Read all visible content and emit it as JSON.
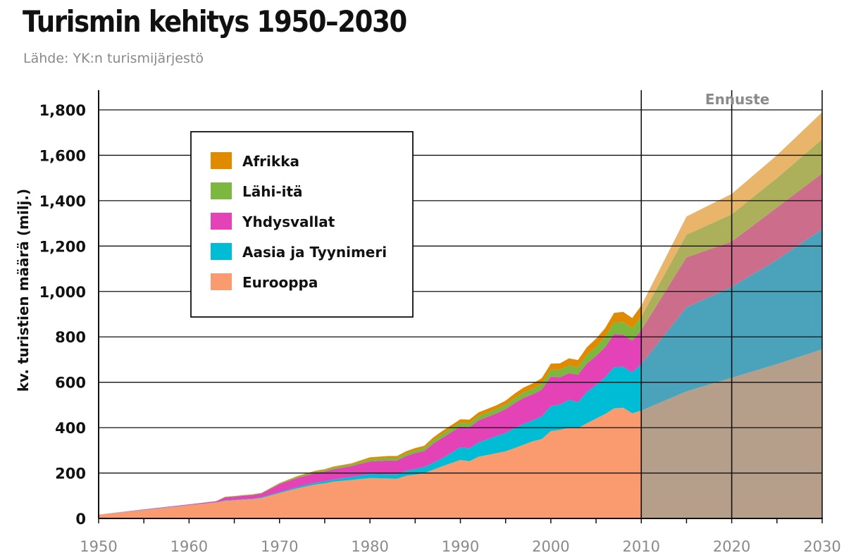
{
  "header": {
    "title": "Turismin kehitys 1950–2030",
    "subtitle": "Lähde: YK:n turismijärjestö"
  },
  "chart_data": {
    "type": "area",
    "stacked": true,
    "title": "Turismin kehitys 1950–2030",
    "ylabel": "kv. turistien määrä (milj.)",
    "xlabel": "",
    "xlim": [
      1950,
      2030
    ],
    "ylim": [
      0,
      1900
    ],
    "yticks": [
      0,
      200,
      400,
      600,
      800,
      1000,
      1200,
      1400,
      1600,
      1800
    ],
    "ytick_labels": [
      "0",
      "200",
      "400",
      "600",
      "800",
      "1,000",
      "1,200",
      "1,400",
      "1,600",
      "1,800"
    ],
    "xticks": [
      1950,
      1960,
      1970,
      1980,
      1990,
      2000,
      2010,
      2020,
      2030
    ],
    "xtick_labels": [
      "1950",
      "1960",
      "1970",
      "1980",
      "1990",
      "2000",
      "2010",
      "2020",
      "2030"
    ],
    "grid": "horizontal",
    "forecast": {
      "label": "Ennuste",
      "start": 2010,
      "end": 2030,
      "marker": 2020
    },
    "legend_position": "top-left",
    "x": [
      1950,
      1955,
      1960,
      1963,
      1964,
      1965,
      1966,
      1967,
      1968,
      1970,
      1972,
      1974,
      1975,
      1976,
      1978,
      1980,
      1982,
      1983,
      1984,
      1985,
      1986,
      1987,
      1988,
      1990,
      1991,
      1992,
      1994,
      1995,
      1996,
      1997,
      1998,
      1999,
      2000,
      2001,
      2002,
      2003,
      2004,
      2005,
      2006,
      2007,
      2008,
      2009,
      2010,
      2015,
      2020,
      2025,
      2030
    ],
    "series": [
      {
        "name": "Eurooppa",
        "color": "#f99b6e",
        "forecast_color": "#b59e8a",
        "values": [
          17,
          37,
          58,
          70,
          78,
          80,
          83,
          85,
          90,
          112,
          133,
          150,
          155,
          162,
          170,
          178,
          176,
          175,
          188,
          193,
          200,
          215,
          230,
          258,
          252,
          272,
          288,
          296,
          310,
          325,
          340,
          350,
          385,
          390,
          400,
          398,
          420,
          440,
          460,
          485,
          488,
          463,
          475,
          560,
          620,
          680,
          745
        ]
      },
      {
        "name": "Aasia ja Tyynimeri",
        "color": "#00bcd4",
        "forecast_color": "#4aa3bb",
        "values": [
          0,
          1,
          1,
          1,
          2,
          2,
          2,
          2,
          3,
          4,
          6,
          8,
          9,
          10,
          13,
          18,
          19,
          20,
          22,
          25,
          27,
          30,
          35,
          55,
          57,
          63,
          75,
          80,
          88,
          92,
          92,
          100,
          110,
          112,
          122,
          115,
          138,
          148,
          162,
          182,
          180,
          180,
          205,
          370,
          400,
          460,
          530
        ]
      },
      {
        "name": "Yhdysvallat",
        "color": "#e443b8",
        "forecast_color": "#cc6d8c",
        "values": [
          0,
          2,
          3,
          4,
          13,
          14,
          15,
          16,
          17,
          35,
          40,
          42,
          43,
          45,
          48,
          55,
          60,
          60,
          65,
          70,
          70,
          85,
          90,
          92,
          93,
          97,
          100,
          105,
          110,
          115,
          115,
          118,
          130,
          120,
          118,
          120,
          125,
          128,
          133,
          145,
          142,
          140,
          150,
          220,
          200,
          230,
          245
        ]
      },
      {
        "name": "Lähi-itä",
        "color": "#7cb740",
        "forecast_color": "#adb05b",
        "values": [
          0,
          0,
          0,
          1,
          2,
          2,
          2,
          2,
          2,
          3,
          5,
          6,
          6,
          7,
          7,
          10,
          12,
          12,
          12,
          13,
          13,
          15,
          17,
          17,
          18,
          19,
          20,
          20,
          22,
          23,
          25,
          25,
          30,
          33,
          35,
          33,
          38,
          40,
          45,
          52,
          55,
          55,
          60,
          100,
          120,
          130,
          150
        ]
      },
      {
        "name": "Afrikka",
        "color": "#e08a00",
        "forecast_color": "#e8b56a",
        "values": [
          0,
          0,
          0,
          1,
          1,
          1,
          1,
          1,
          1,
          2,
          3,
          4,
          4,
          5,
          5,
          8,
          8,
          8,
          9,
          9,
          10,
          12,
          13,
          15,
          15,
          16,
          16,
          18,
          20,
          22,
          23,
          25,
          27,
          28,
          30,
          32,
          34,
          36,
          38,
          42,
          45,
          45,
          48,
          80,
          90,
          100,
          120
        ]
      }
    ]
  }
}
